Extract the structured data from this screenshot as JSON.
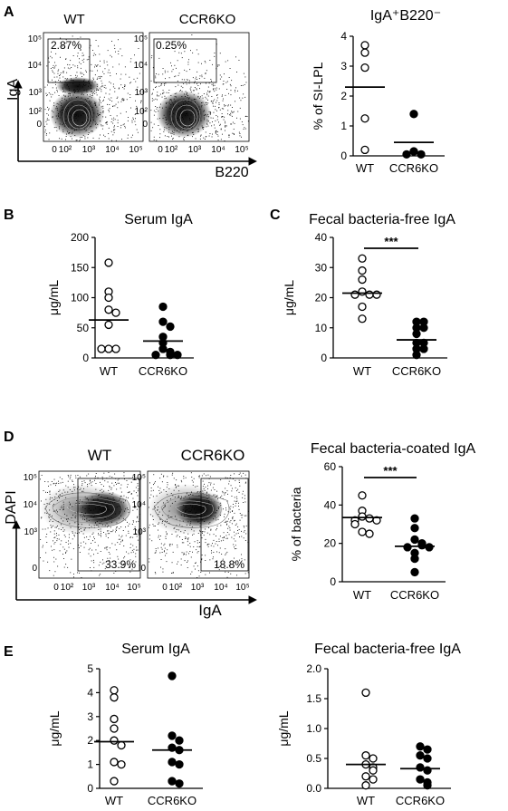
{
  "panels": {
    "A": "A",
    "B": "B",
    "C": "C",
    "D": "D",
    "E": "E"
  },
  "flowA": {
    "wt_label": "WT",
    "ko_label": "CCR6KO",
    "wt_pct": "2.87%",
    "ko_pct": "0.25%",
    "ylabel": "IgA",
    "xlabel": "B220",
    "yticks": [
      "10⁵",
      "10⁴",
      "10³",
      "10²",
      "0"
    ],
    "xticks": [
      "0",
      "10²",
      "10³",
      "10⁴",
      "10⁵"
    ]
  },
  "flowD": {
    "wt_label": "WT",
    "ko_label": "CCR6KO",
    "wt_pct": "33.9%",
    "ko_pct": "18.8%",
    "ylabel": "DAPI",
    "xlabel": "IgA",
    "yticks": [
      "10⁵",
      "10⁴",
      "10³",
      "0"
    ],
    "xticks": [
      "0",
      "10²",
      "10³",
      "10⁴",
      "10⁵"
    ]
  },
  "chart_data": [
    {
      "id": "A",
      "type": "scatter",
      "title": "IgA⁺B220⁻",
      "ylabel": "% of SI-LPL",
      "xlabel": "",
      "categories": [
        "WT",
        "CCR6KO"
      ],
      "ylim": [
        0,
        4
      ],
      "yticks": [
        "0",
        "1",
        "2",
        "3",
        "4"
      ],
      "significance": "",
      "series": [
        {
          "values": [
            3.7,
            3.45,
            2.95,
            1.25,
            0.2
          ],
          "mean": 2.3,
          "fill": "#ffffff"
        },
        {
          "values": [
            1.4,
            0.15,
            0.05,
            0.05
          ],
          "mean": 0.45,
          "fill": "#000000"
        }
      ]
    },
    {
      "id": "B",
      "type": "scatter",
      "title": "Serum IgA",
      "ylabel": "μg/mL",
      "xlabel": "",
      "categories": [
        "WT",
        "CCR6KO"
      ],
      "ylim": [
        0,
        200
      ],
      "yticks": [
        "0",
        "50",
        "100",
        "150",
        "200"
      ],
      "significance": "",
      "series": [
        {
          "values": [
            158,
            110,
            100,
            80,
            75,
            55,
            15,
            15,
            15
          ],
          "mean": 63,
          "fill": "#ffffff"
        },
        {
          "values": [
            85,
            60,
            52,
            35,
            25,
            15,
            10,
            5,
            5,
            5
          ],
          "mean": 28,
          "fill": "#000000"
        }
      ]
    },
    {
      "id": "C",
      "type": "scatter",
      "title": "Fecal bacteria-free IgA",
      "ylabel": "μg/mL",
      "xlabel": "",
      "categories": [
        "WT",
        "CCR6KO"
      ],
      "ylim": [
        0,
        40
      ],
      "yticks": [
        "0",
        "10",
        "20",
        "30",
        "40"
      ],
      "significance": "***",
      "series": [
        {
          "values": [
            33,
            29,
            26,
            22,
            21,
            21,
            21,
            17,
            13
          ],
          "mean": 21.5,
          "fill": "#ffffff"
        },
        {
          "values": [
            12,
            12,
            10,
            10,
            8,
            5,
            5,
            3,
            3,
            1
          ],
          "mean": 6,
          "fill": "#000000"
        }
      ]
    },
    {
      "id": "D",
      "type": "scatter",
      "title": "Fecal bacteria-coated IgA",
      "ylabel": "% of bacteria",
      "xlabel": "",
      "categories": [
        "WT",
        "CCR6KO"
      ],
      "ylim": [
        0,
        60
      ],
      "yticks": [
        "0",
        "20",
        "40",
        "60"
      ],
      "significance": "***",
      "series": [
        {
          "values": [
            45,
            37,
            34,
            33,
            32,
            32,
            30,
            26,
            25
          ],
          "mean": 33.5,
          "fill": "#ffffff"
        },
        {
          "values": [
            33,
            28,
            22,
            20,
            19,
            18,
            18,
            15,
            12,
            5
          ],
          "mean": 18.5,
          "fill": "#000000"
        }
      ]
    },
    {
      "id": "E1",
      "type": "scatter",
      "title": "Serum IgA",
      "ylabel": "μg/mL",
      "xlabel": "",
      "categories": [
        "WT",
        "CCR6KO"
      ],
      "ylim": [
        0,
        5
      ],
      "yticks": [
        "0",
        "1",
        "2",
        "3",
        "4",
        "5"
      ],
      "significance": "",
      "series": [
        {
          "values": [
            4.1,
            3.8,
            2.9,
            2.5,
            2.0,
            1.8,
            1.1,
            1.0,
            0.3
          ],
          "mean": 1.95,
          "fill": "#ffffff"
        },
        {
          "values": [
            4.7,
            2.2,
            2.0,
            1.7,
            1.6,
            1.1,
            1.0,
            0.3,
            0.2
          ],
          "mean": 1.6,
          "fill": "#000000"
        }
      ]
    },
    {
      "id": "E2",
      "type": "scatter",
      "title": "Fecal bacteria-free IgA",
      "ylabel": "μg/mL",
      "xlabel": "",
      "categories": [
        "WT",
        "CCR6KO"
      ],
      "ylim": [
        0,
        2.0
      ],
      "yticks": [
        "0.0",
        "0.5",
        "1.0",
        "1.5",
        "2.0"
      ],
      "significance": "",
      "series": [
        {
          "values": [
            1.6,
            0.55,
            0.5,
            0.4,
            0.35,
            0.3,
            0.2,
            0.15,
            0.05
          ],
          "mean": 0.4,
          "fill": "#ffffff"
        },
        {
          "values": [
            0.7,
            0.65,
            0.55,
            0.5,
            0.35,
            0.3,
            0.15,
            0.1,
            0.05
          ],
          "mean": 0.33,
          "fill": "#000000"
        }
      ]
    }
  ]
}
